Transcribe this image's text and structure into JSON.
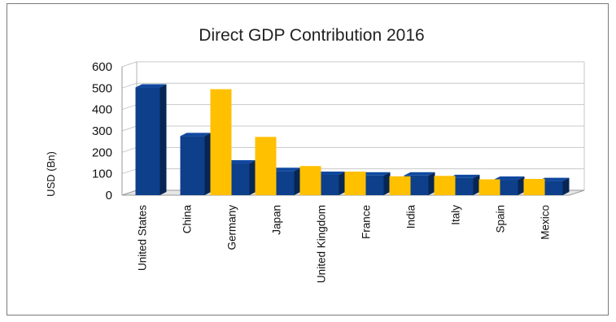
{
  "chart_data": {
    "type": "bar",
    "title": "Direct GDP Contribution 2016",
    "ylabel": "USD (Bn)",
    "xlabel": "",
    "ylim": [
      0,
      600
    ],
    "yticks": [
      0,
      100,
      200,
      300,
      400,
      500,
      600
    ],
    "grid": true,
    "legend": "none",
    "categories": [
      "United States",
      "China",
      "Germany",
      "Japan",
      "United Kingdom",
      "France",
      "India",
      "Italy",
      "Spain",
      "Mexico"
    ],
    "series": [
      {
        "color": "#0d3f8a",
        "values": [
          503,
          276,
          148,
          113,
          95,
          92,
          92,
          80,
          72,
          66
        ]
      },
      {
        "color": "#ffc000",
        "values": [
          null,
          null,
          495,
          272,
          136,
          110,
          88,
          90,
          74,
          76
        ]
      }
    ]
  }
}
